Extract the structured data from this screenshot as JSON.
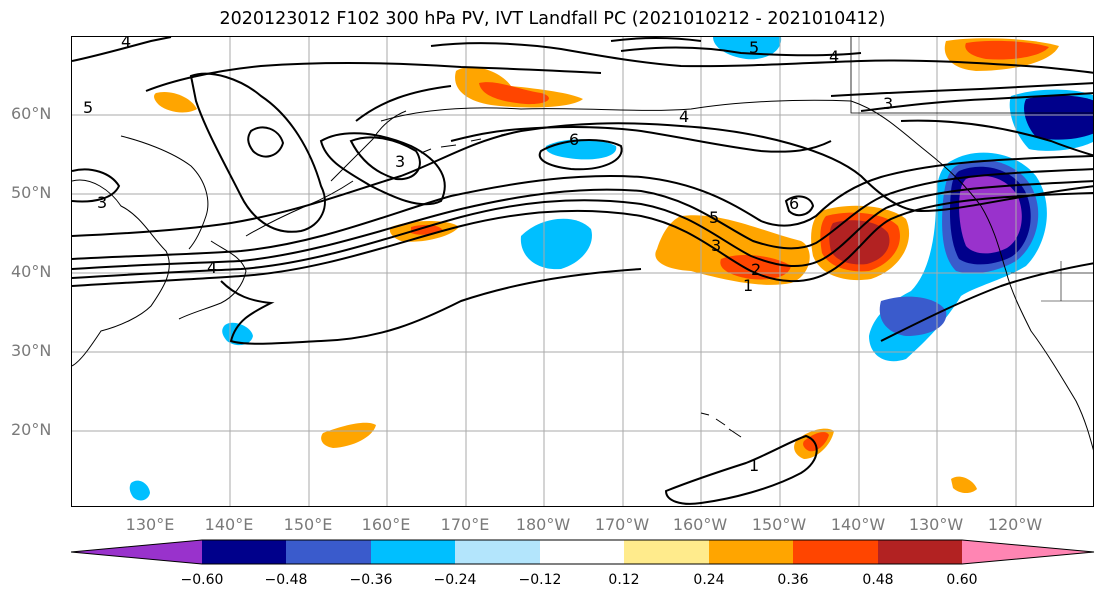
{
  "title": "2020123012 F102 300 hPa PV, IVT Landfall PC (2021010212 - 2021010412)",
  "lat_labels": [
    "60°N",
    "50°N",
    "40°N",
    "30°N",
    "20°N"
  ],
  "lon_labels": [
    "130°E",
    "140°E",
    "150°E",
    "160°E",
    "170°E",
    "180°W",
    "170°W",
    "160°W",
    "150°W",
    "140°W",
    "130°W",
    "120°W"
  ],
  "colorbar": {
    "ticks": [
      "−0.60",
      "−0.48",
      "−0.36",
      "−0.24",
      "−0.12",
      "0.12",
      "0.24",
      "0.36",
      "0.48",
      "0.60"
    ],
    "colors": [
      "#9932CC",
      "#00008B",
      "#3A5BCC",
      "#00BFFF",
      "#B3E5FC",
      "#FFFFFF",
      "#FFEB8C",
      "#FFA500",
      "#FF4500",
      "#B22222",
      "#FF85B3"
    ]
  },
  "contour_labels": [
    "4",
    "5",
    "4",
    "3",
    "6",
    "4",
    "5",
    "3",
    "3",
    "4",
    "5",
    "3",
    "2",
    "1",
    "6",
    "1"
  ]
}
